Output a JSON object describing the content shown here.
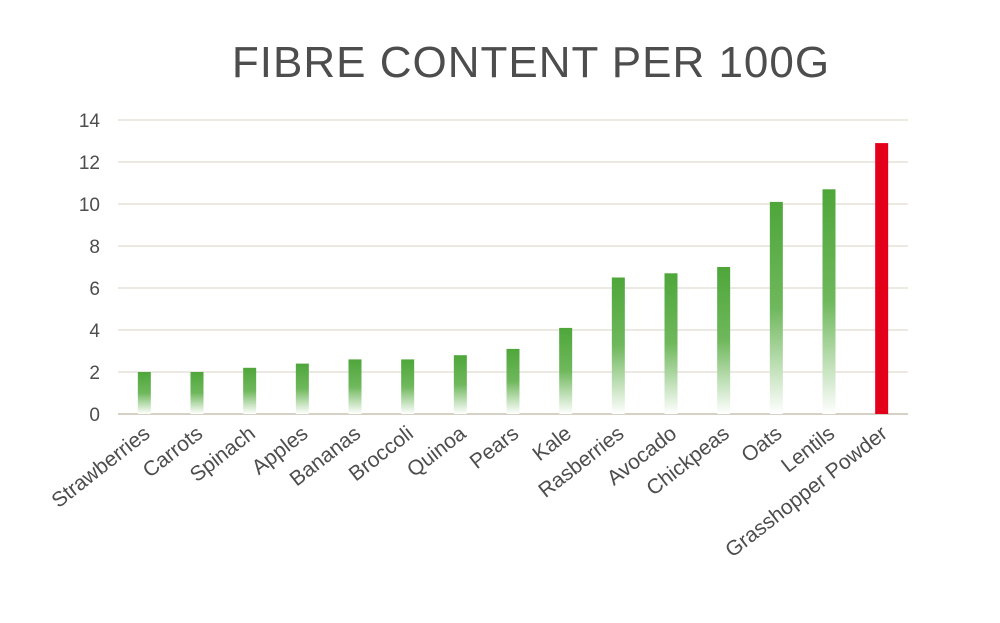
{
  "chart_data": {
    "type": "bar",
    "title": "FIBRE CONTENT PER 100G",
    "xlabel": "",
    "ylabel": "",
    "ylim": [
      0,
      14
    ],
    "yticks": [
      0,
      2,
      4,
      6,
      8,
      10,
      12,
      14
    ],
    "grid": true,
    "legend": "none",
    "categories": [
      "Strawberries",
      "Carrots",
      "Spinach",
      "Apples",
      "Bananas",
      "Broccoli",
      "Quinoa",
      "Pears",
      "Kale",
      "Rasberries",
      "Avocado",
      "Chickpeas",
      "Oats",
      "Lentils",
      "Grasshopper Powder"
    ],
    "values": [
      2.0,
      2.0,
      2.2,
      2.4,
      2.6,
      2.6,
      2.8,
      3.1,
      4.1,
      6.5,
      6.7,
      7.0,
      10.1,
      10.7,
      12.9
    ],
    "colors": {
      "bar_green": "#4ea63a",
      "highlight_red": "#e3001b",
      "highlight_category": "Grasshopper Powder",
      "grid": "#d9d3c7",
      "text": "#4d4d4d"
    }
  }
}
